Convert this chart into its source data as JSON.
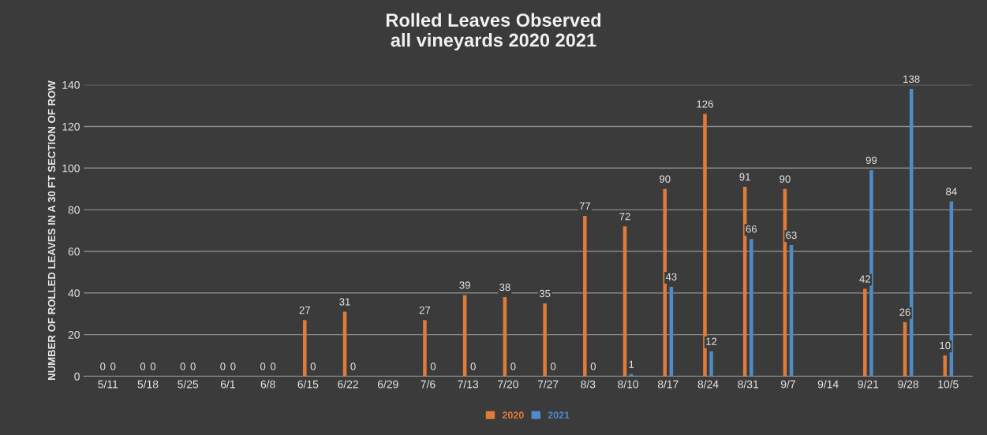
{
  "chart_data": {
    "type": "bar",
    "title": "Rolled Leaves Observed\nall vineyards 2020 2021",
    "ylabel": "NUMBER OF ROLLED LEAVES IN A 30 FT SECTION OF ROW",
    "categories": [
      "5/11",
      "5/18",
      "5/25",
      "6/1",
      "6/8",
      "6/15",
      "6/22",
      "6/29",
      "7/6",
      "7/13",
      "7/20",
      "7/27",
      "8/3",
      "8/10",
      "8/17",
      "8/24",
      "8/31",
      "9/7",
      "9/14",
      "9/21",
      "9/28",
      "10/5"
    ],
    "series": [
      {
        "name": "2020",
        "color": "#e07b39",
        "values": [
          0,
          0,
          0,
          0,
          0,
          27,
          31,
          null,
          27,
          39,
          38,
          35,
          77,
          72,
          90,
          126,
          91,
          90,
          null,
          42,
          26,
          10
        ]
      },
      {
        "name": "2021",
        "color": "#4f8bc9",
        "values": [
          0,
          0,
          0,
          0,
          0,
          0,
          0,
          null,
          0,
          0,
          0,
          0,
          0,
          1,
          43,
          12,
          66,
          63,
          null,
          99,
          138,
          84
        ]
      }
    ],
    "ylim": [
      0,
      140
    ],
    "yticks": [
      0,
      20,
      40,
      60,
      80,
      100,
      120,
      140
    ],
    "grid": "y",
    "legend": "bottom",
    "data_labels": true
  }
}
